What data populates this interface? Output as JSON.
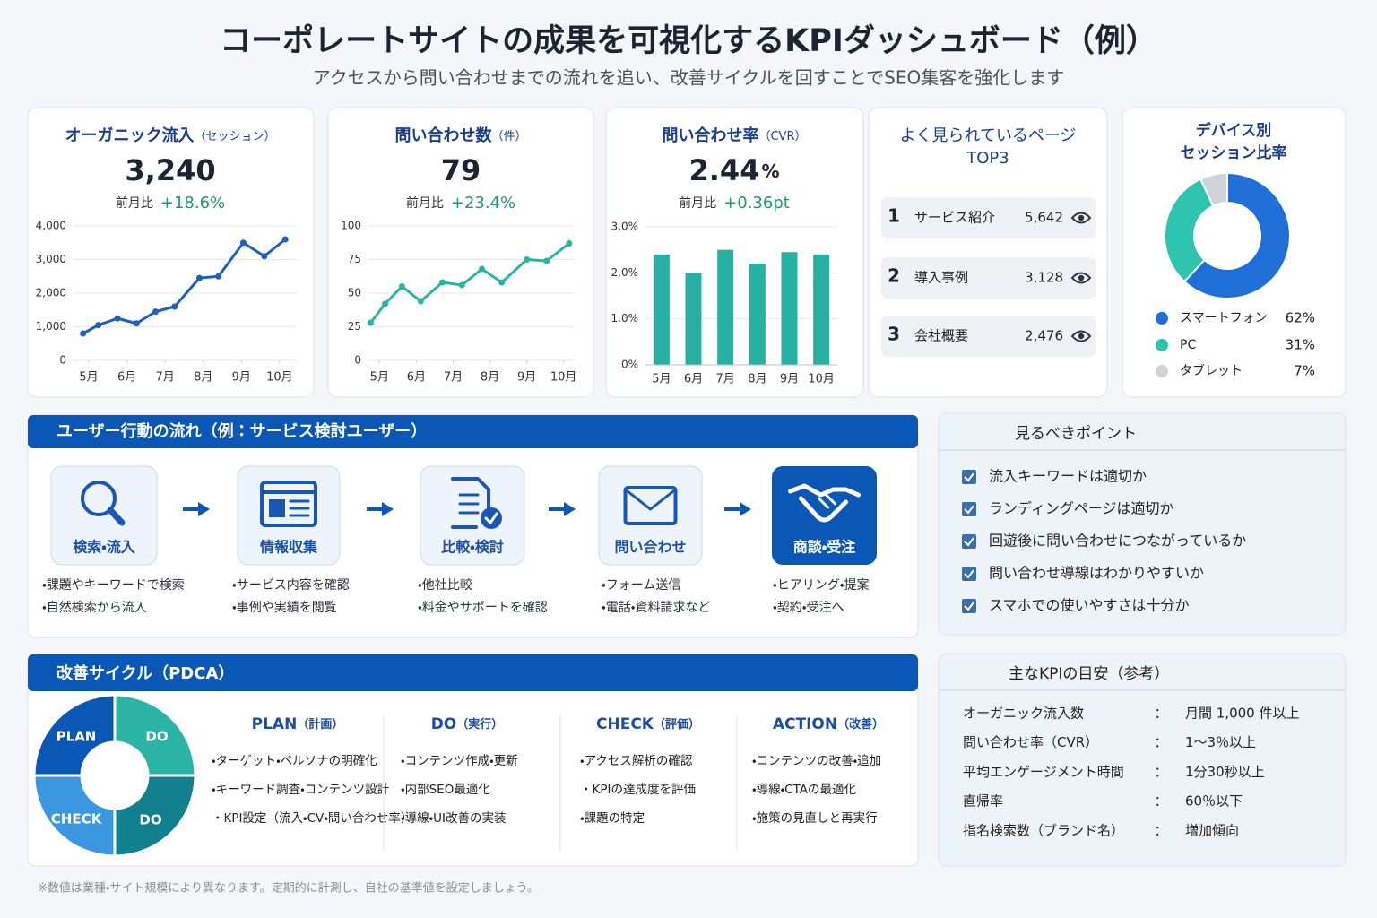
{
  "header": {
    "title": "コーポレートサイトの成果を可視化するKPIダッシュボード（例）",
    "subtitle": "アクセスから問い合わせまでの流れを追い、改善サイクルを回すことでSEO集客を強化します"
  },
  "kpi_cards": [
    {
      "title": "オーガニック流入",
      "unit": "（セッション）",
      "value": "3,240",
      "compare_label": "前月比",
      "change": "+18.6%"
    },
    {
      "title": "問い合わせ数",
      "unit": "（件）",
      "value": "79",
      "compare_label": "前月比",
      "change": "+23.4%"
    },
    {
      "title": "問い合わせ率",
      "unit": "（CVR）",
      "value": "2.44",
      "value_unit": "%",
      "compare_label": "前月比",
      "change": "+0.36pt"
    }
  ],
  "chart_data": [
    {
      "type": "line",
      "color": "#1f5fc0",
      "grid": true,
      "x": [
        4.85,
        5.25,
        5.75,
        6.25,
        6.75,
        7.25,
        7.9,
        8.4,
        9.05,
        9.6,
        10.15
      ],
      "values": [
        800,
        1050,
        1250,
        1100,
        1450,
        1600,
        2450,
        2500,
        3500,
        3100,
        3600
      ],
      "xlim": [
        4.6,
        10.45
      ],
      "xticks": [
        {
          "value": 5,
          "label": "5月"
        },
        {
          "value": 6,
          "label": "6月"
        },
        {
          "value": 7,
          "label": "7月"
        },
        {
          "value": 8,
          "label": "8月"
        },
        {
          "value": 9,
          "label": "9月"
        },
        {
          "value": 10,
          "label": "10月"
        }
      ],
      "ylim": [
        0,
        4000
      ],
      "yticks": [
        0,
        {
          "value": 1000,
          "label": "1,000"
        },
        {
          "value": 2000,
          "label": "2,000"
        },
        {
          "value": 3000,
          "label": "3,000"
        },
        {
          "value": 4000,
          "label": "4,000"
        }
      ]
    },
    {
      "type": "line",
      "color": "#2bb3a6",
      "grid": true,
      "x": [
        4.76,
        5.15,
        5.61,
        6.12,
        6.71,
        7.24,
        7.78,
        8.32,
        9.0,
        9.54,
        10.15
      ],
      "values": [
        28,
        42,
        55,
        44,
        58,
        56,
        68,
        58,
        75,
        74,
        87
      ],
      "xlim": [
        4.7,
        10.3
      ],
      "xticks": [
        {
          "value": 5,
          "label": "5月"
        },
        {
          "value": 6,
          "label": "6月"
        },
        {
          "value": 7,
          "label": "7月"
        },
        {
          "value": 8,
          "label": "8月"
        },
        {
          "value": 9,
          "label": "9月"
        },
        {
          "value": 10,
          "label": "10月"
        }
      ],
      "ylim": [
        0,
        100
      ],
      "yticks": [
        0,
        25,
        50,
        75,
        100
      ]
    },
    {
      "type": "bar",
      "color": "#27b0a4",
      "grid": true,
      "categories": [
        "5月",
        "6月",
        "7月",
        "8月",
        "9月",
        "10月"
      ],
      "values": [
        2.4,
        2.0,
        2.5,
        2.2,
        2.45,
        2.4
      ],
      "ylim": [
        0,
        3
      ],
      "yticks": [
        {
          "value": 0,
          "label": "0%"
        },
        {
          "value": 1,
          "label": "1.0%"
        },
        {
          "value": 2,
          "label": "2.0%"
        },
        {
          "value": 3,
          "label": "3.0%"
        }
      ]
    },
    {
      "type": "pie",
      "title": [
        "デバイス別",
        "セッション比率"
      ],
      "categories": [
        "スマートフォン",
        "PC",
        "タブレット"
      ],
      "values": [
        62,
        31,
        7
      ],
      "value_labels": [
        "62%",
        "31%",
        "7%"
      ],
      "colors": [
        "#1f6fd6",
        "#2ec4b0",
        "#cfd3d8"
      ]
    }
  ],
  "top_pages": {
    "title": [
      "よく見られているページ",
      "TOP3"
    ],
    "rows": [
      {
        "rank": "1",
        "name": "サービス紹介",
        "views": "5,642"
      },
      {
        "rank": "2",
        "name": "導入事例",
        "views": "3,128"
      },
      {
        "rank": "3",
        "name": "会社概要",
        "views": "2,476"
      }
    ]
  },
  "flow": {
    "title": "ユーザー行動の流れ（例：サービス検討ユーザー）",
    "steps": [
      {
        "label": "検索・流入",
        "items": [
          "・課題やキーワードで検索",
          "・自然検索から流入"
        ]
      },
      {
        "label": "情報収集",
        "items": [
          "・サービス内容を確認",
          "・事例や実績を閲覧"
        ]
      },
      {
        "label": "比較・検討",
        "items": [
          "・他社比較",
          "・料金やサポートを確認"
        ]
      },
      {
        "label": "問い合わせ",
        "items": [
          "・フォーム送信",
          "・電話・資料請求など"
        ]
      },
      {
        "label": "商談・受注",
        "items": [
          "・ヒアリング・提案",
          "・契約・受注へ"
        ]
      }
    ]
  },
  "check_points": {
    "title": "見るべきポイント",
    "items": [
      "流入キーワードは適切か",
      "ランディングページは適切か",
      "回遊後に問い合わせにつながっているか",
      "問い合わせ導線はわかりやすいか",
      "スマホでの使いやすさは十分か"
    ]
  },
  "pdca": {
    "title": "改善サイクル（PDCA）",
    "wheel": [
      "PLAN",
      "DO",
      "CHECK",
      "DO"
    ],
    "columns": [
      {
        "title": "PLAN",
        "sub": "（計画）",
        "items": [
          "・ターゲット・ペルソナの明確化",
          "・キーワード調査・コンテンツ設計",
          "・KPI設定（流入・CV・問い合わせ率）"
        ]
      },
      {
        "title": "DO",
        "sub": "（実行）",
        "items": [
          "・コンテンツ作成・更新",
          "・内部SEO最適化",
          "・導線・UI改善の実装"
        ]
      },
      {
        "title": "CHECK",
        "sub": "（評価）",
        "items": [
          "・アクセス解析の確認",
          "・KPIの達成度を評価",
          "・課題の特定"
        ]
      },
      {
        "title": "ACTION",
        "sub": "（改善）",
        "items": [
          "・コンテンツの改善・追加",
          "・導線・CTAの最適化",
          "・施策の見直しと再実行"
        ]
      }
    ]
  },
  "kpi_targets": {
    "title": "主なKPIの目安（参考）",
    "separator": "：",
    "rows": [
      {
        "name": "オーガニック流入数",
        "target": "月間 1,000 件以上"
      },
      {
        "name": "問い合わせ率（CVR）",
        "target": "1〜3％以上"
      },
      {
        "name": "平均エンゲージメント時間",
        "target": "1分30秒以上"
      },
      {
        "name": "直帰率",
        "target": "60％以下"
      },
      {
        "name": "指名検索数（ブランド名）",
        "target": "増加傾向"
      }
    ]
  },
  "footnote": "※数値は業種・サイト規模により異なります。定期的に計測し、自社の基準値を設定しましょう。"
}
